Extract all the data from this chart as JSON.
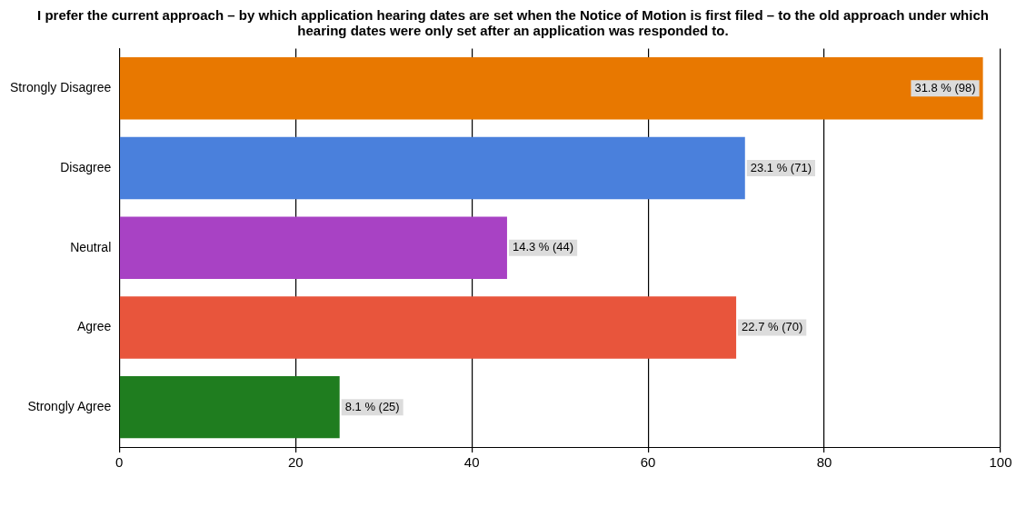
{
  "chart_data": {
    "type": "bar",
    "orientation": "horizontal",
    "title": "I prefer the current approach – by which application hearing dates are set when the Notice of Motion is first filed – to the old approach under which hearing dates were only set after an application was responded to.",
    "categories": [
      "Strongly Disagree",
      "Disagree",
      "Neutral",
      "Agree",
      "Strongly Agree"
    ],
    "values": [
      98,
      71,
      44,
      70,
      25
    ],
    "colors": [
      "#e87800",
      "#4a80dc",
      "#a842c4",
      "#e8553c",
      "#1f7d1f"
    ],
    "value_labels": [
      "31.8 % (98)",
      "23.1 % (71)",
      "14.3 % (44)",
      "22.7 % (70)",
      "8.1 % (25)"
    ],
    "xlim": [
      0,
      100
    ],
    "xticks": [
      0,
      20,
      40,
      60,
      80,
      100
    ],
    "grid": "x",
    "legend": false
  }
}
